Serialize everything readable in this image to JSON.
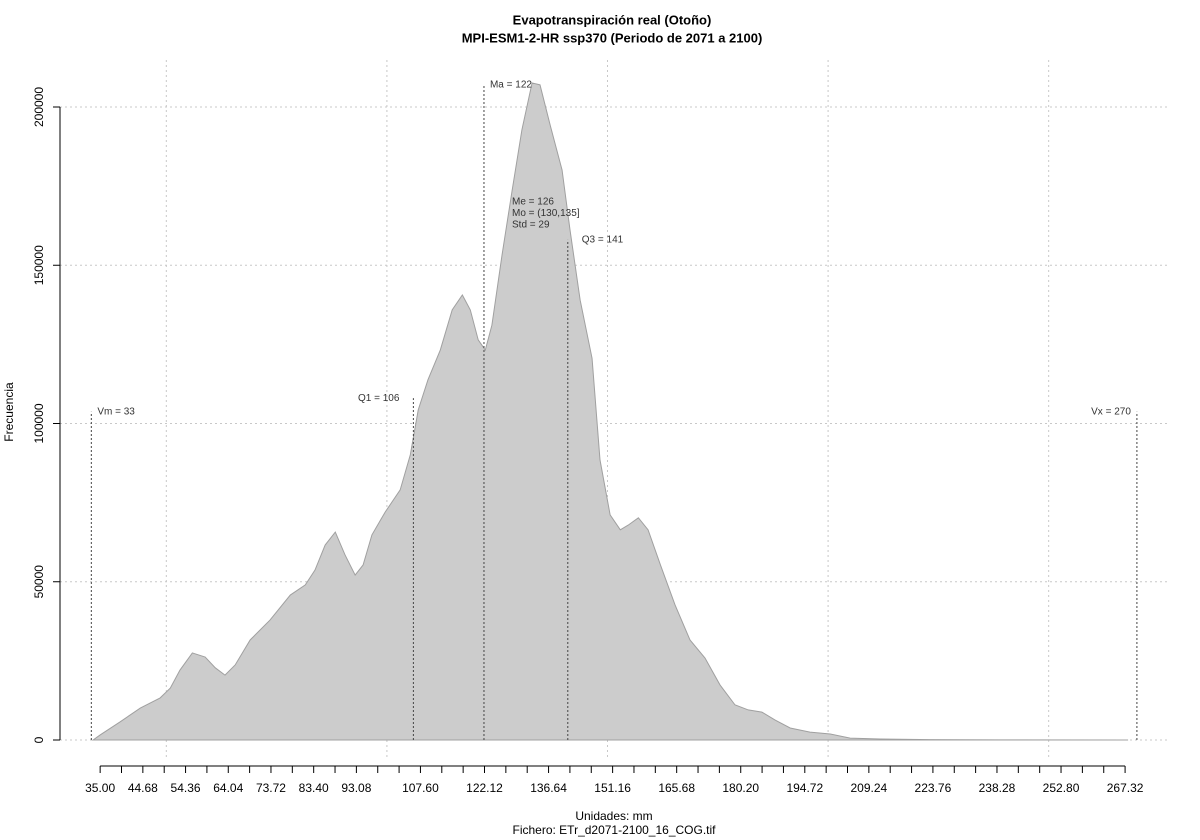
{
  "chart_data": {
    "type": "area",
    "title": "Evapotranspiración real (Otoño)",
    "subtitle": "MPI-ESM1-2-HR ssp370 (Periodo de 2071 a 2100)",
    "xlabel": "Unidades: mm",
    "caption": "Fichero: ETr_d2071-2100_16_COG.tif",
    "ylabel": "Frecuencia",
    "color": "#cccccc",
    "x": [
      33.4,
      35,
      39.5,
      44.1,
      48.6,
      50.9,
      53.1,
      55.9,
      58.8,
      61.1,
      63.3,
      65.6,
      69,
      73.5,
      78.1,
      81.5,
      83.7,
      86,
      88.3,
      90.5,
      92.8,
      94.6,
      96.6,
      99.6,
      103,
      105.3,
      107.1,
      109.3,
      112.1,
      114.8,
      117.1,
      118.9,
      120.7,
      122.3,
      123.8,
      126.1,
      128.4,
      130.6,
      132.9,
      134.7,
      137,
      139.7,
      141.5,
      143.8,
      146.5,
      148.3,
      150.6,
      152.9,
      154.7,
      157,
      159.2,
      162,
      165.3,
      168.7,
      172.1,
      175.5,
      178.9,
      181.9,
      185,
      188,
      191.4,
      195.9,
      200.5,
      205,
      211.8,
      223.1,
      239,
      268
    ],
    "values": [
      0,
      1600,
      5700,
      10100,
      13300,
      16400,
      22100,
      27500,
      26200,
      22800,
      20500,
      23700,
      31600,
      37900,
      45800,
      49000,
      53700,
      61600,
      65700,
      58500,
      52100,
      55300,
      64800,
      72000,
      79000,
      90100,
      104300,
      113800,
      123200,
      135900,
      140600,
      135900,
      126400,
      123200,
      131100,
      153300,
      173800,
      192800,
      207600,
      207000,
      194300,
      180100,
      161200,
      139000,
      120600,
      88500,
      71100,
      66400,
      67900,
      70200,
      66400,
      55300,
      42700,
      31600,
      25900,
      17400,
      11100,
      9500,
      8800,
      6300,
      3800,
      2500,
      1900,
      600,
      300,
      100,
      50,
      0
    ],
    "markers": [
      {
        "label": "Vm = 33",
        "x": 33,
        "y": 103700
      },
      {
        "label": "Q1 = 106",
        "x": 106,
        "y": 108000
      },
      {
        "label": "Ma = 122",
        "x": 122,
        "y": 207000
      },
      {
        "label": "Q3 = 141",
        "x": 141,
        "y": 158000
      },
      {
        "label": "Vx = 270",
        "x": 270,
        "y": 103700
      }
    ],
    "stats": [
      "Me = 126",
      "Mo = (130,135]",
      "Std = 29"
    ],
    "xlim": [
      25.9,
      277.5
    ],
    "ylim": [
      -6320,
      214850
    ],
    "xticks": [
      {
        "value": 35,
        "label": "35.00"
      },
      {
        "value": 44.68,
        "label": "44.68"
      },
      {
        "value": 54.36,
        "label": "54.36"
      },
      {
        "value": 64.04,
        "label": "64.04"
      },
      {
        "value": 73.72,
        "label": "73.72"
      },
      {
        "value": 83.4,
        "label": "83.40"
      },
      {
        "value": 93.08,
        "label": "93.08"
      },
      {
        "value": 107.6,
        "label": "107.60"
      },
      {
        "value": 122.12,
        "label": "122.12"
      },
      {
        "value": 136.64,
        "label": "136.64"
      },
      {
        "value": 151.16,
        "label": "151.16"
      },
      {
        "value": 165.68,
        "label": "165.68"
      },
      {
        "value": 180.2,
        "label": "180.20"
      },
      {
        "value": 194.72,
        "label": "194.72"
      },
      {
        "value": 209.24,
        "label": "209.24"
      },
      {
        "value": 223.76,
        "label": "223.76"
      },
      {
        "value": 238.28,
        "label": "238.28"
      },
      {
        "value": 252.8,
        "label": "252.80"
      },
      {
        "value": 267.32,
        "label": "267.32"
      }
    ],
    "xminorticks": [
      39.84,
      49.52,
      59.2,
      68.88,
      78.56,
      88.24,
      97.92,
      102.76,
      112.44,
      117.28,
      126.96,
      131.8,
      141.48,
      146.32,
      156,
      160.84,
      170.52,
      175.36,
      185.04,
      189.88,
      199.56,
      204.4,
      214.08,
      218.92,
      228.6,
      233.44,
      243.12,
      247.96,
      257.64,
      262.48
    ],
    "xgrid": [
      50,
      100,
      150,
      200,
      250
    ],
    "yticks": [
      0,
      50000,
      100000,
      150000,
      200000
    ],
    "grid": true
  }
}
